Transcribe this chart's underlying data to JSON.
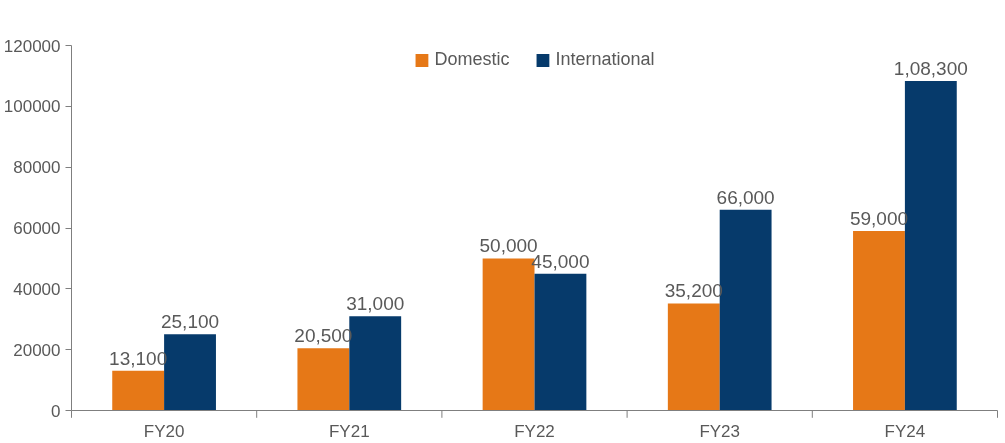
{
  "chart_data": {
    "type": "bar",
    "categories": [
      "FY20",
      "FY21",
      "FY22",
      "FY23",
      "FY24"
    ],
    "series": [
      {
        "name": "Domestic",
        "color": "#e67817",
        "values": [
          13100,
          20500,
          50000,
          35200,
          59000
        ],
        "value_labels": [
          "13,100",
          "20,500",
          "50,000",
          "35,200",
          "59,000"
        ]
      },
      {
        "name": "International",
        "color": "#063a6b",
        "values": [
          25100,
          31000,
          45000,
          66000,
          108300
        ],
        "value_labels": [
          "25,100",
          "31,000",
          "45,000",
          "66,000",
          "1,08,300"
        ]
      }
    ],
    "ylim": [
      0,
      120000
    ],
    "yticks": [
      0,
      20000,
      40000,
      60000,
      80000,
      100000,
      120000
    ],
    "grid": false,
    "legend": "top"
  }
}
